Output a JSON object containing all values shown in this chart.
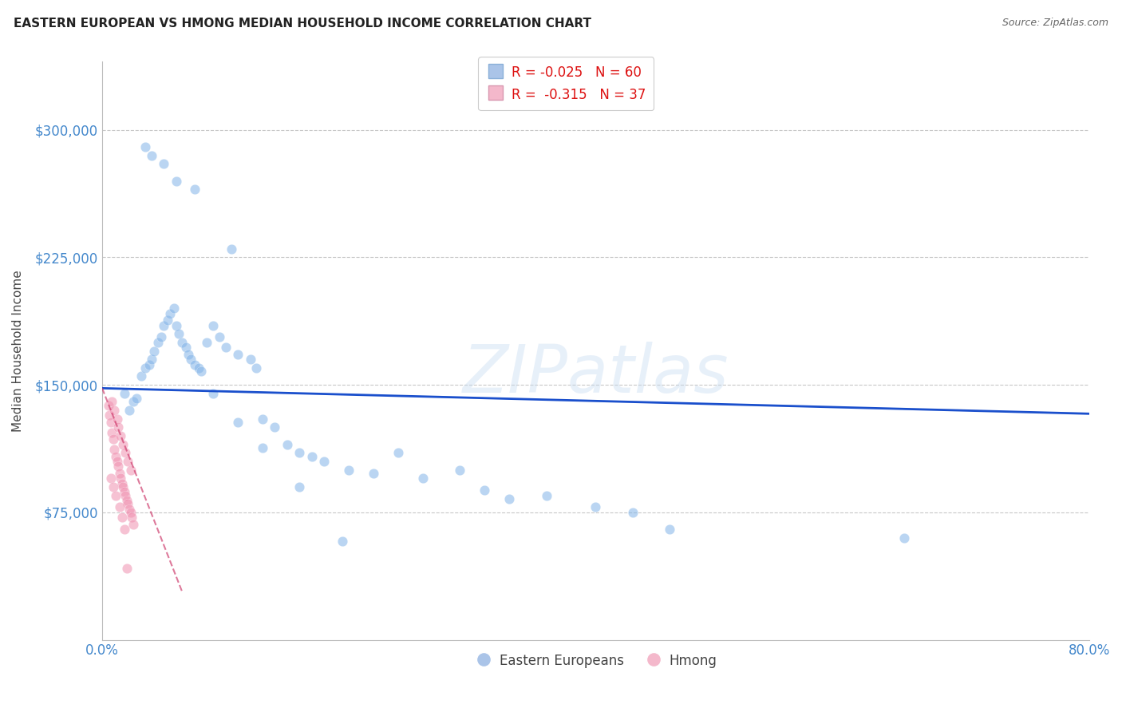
{
  "title": "EASTERN EUROPEAN VS HMONG MEDIAN HOUSEHOLD INCOME CORRELATION CHART",
  "source": "Source: ZipAtlas.com",
  "ylabel": "Median Household Income",
  "y_tick_labels": [
    "$75,000",
    "$150,000",
    "$225,000",
    "$300,000"
  ],
  "y_tick_values": [
    75000,
    150000,
    225000,
    300000
  ],
  "xlim": [
    0.0,
    0.8
  ],
  "ylim": [
    0,
    340000
  ],
  "watermark": "ZIPatlas",
  "blue_scatter_x": [
    0.018,
    0.022,
    0.025,
    0.028,
    0.032,
    0.035,
    0.038,
    0.04,
    0.042,
    0.045,
    0.048,
    0.05,
    0.053,
    0.055,
    0.058,
    0.06,
    0.062,
    0.065,
    0.068,
    0.07,
    0.072,
    0.075,
    0.078,
    0.08,
    0.085,
    0.09,
    0.095,
    0.1,
    0.105,
    0.11,
    0.12,
    0.125,
    0.13,
    0.14,
    0.15,
    0.16,
    0.17,
    0.18,
    0.2,
    0.22,
    0.24,
    0.26,
    0.29,
    0.31,
    0.33,
    0.36,
    0.4,
    0.43,
    0.46,
    0.65,
    0.035,
    0.04,
    0.05,
    0.06,
    0.075,
    0.09,
    0.11,
    0.13,
    0.16,
    0.195
  ],
  "blue_scatter_y": [
    145000,
    135000,
    140000,
    142000,
    155000,
    160000,
    162000,
    165000,
    170000,
    175000,
    178000,
    185000,
    188000,
    192000,
    195000,
    185000,
    180000,
    175000,
    172000,
    168000,
    165000,
    162000,
    160000,
    158000,
    175000,
    185000,
    178000,
    172000,
    230000,
    168000,
    165000,
    160000,
    130000,
    125000,
    115000,
    110000,
    108000,
    105000,
    100000,
    98000,
    110000,
    95000,
    100000,
    88000,
    83000,
    85000,
    78000,
    75000,
    65000,
    60000,
    290000,
    285000,
    280000,
    270000,
    265000,
    145000,
    128000,
    113000,
    90000,
    58000
  ],
  "pink_scatter_x": [
    0.005,
    0.006,
    0.007,
    0.008,
    0.009,
    0.01,
    0.011,
    0.012,
    0.013,
    0.014,
    0.015,
    0.016,
    0.017,
    0.018,
    0.019,
    0.02,
    0.021,
    0.022,
    0.023,
    0.024,
    0.025,
    0.008,
    0.01,
    0.012,
    0.013,
    0.015,
    0.017,
    0.019,
    0.021,
    0.023,
    0.007,
    0.009,
    0.011,
    0.014,
    0.016,
    0.018,
    0.02
  ],
  "pink_scatter_y": [
    138000,
    132000,
    128000,
    122000,
    118000,
    112000,
    108000,
    105000,
    102000,
    98000,
    95000,
    92000,
    90000,
    87000,
    85000,
    82000,
    80000,
    77000,
    75000,
    72000,
    68000,
    140000,
    135000,
    130000,
    125000,
    120000,
    115000,
    110000,
    105000,
    100000,
    95000,
    90000,
    85000,
    78000,
    72000,
    65000,
    42000
  ],
  "blue_line_x": [
    0.0,
    0.8
  ],
  "blue_line_y": [
    148000,
    133000
  ],
  "pink_line_x": [
    0.0,
    0.065
  ],
  "pink_line_y": [
    148000,
    28000
  ],
  "background_color": "#ffffff",
  "grid_color": "#c8c8c8",
  "scatter_size": 80,
  "blue_color": "#82b4e8",
  "pink_color": "#f090b0",
  "blue_line_color": "#1a4fcc",
  "pink_line_color": "#cc3366",
  "title_fontsize": 11,
  "source_fontsize": 9,
  "axis_tick_color": "#4488cc",
  "ylabel_color": "#444444",
  "ylabel_fontsize": 11
}
